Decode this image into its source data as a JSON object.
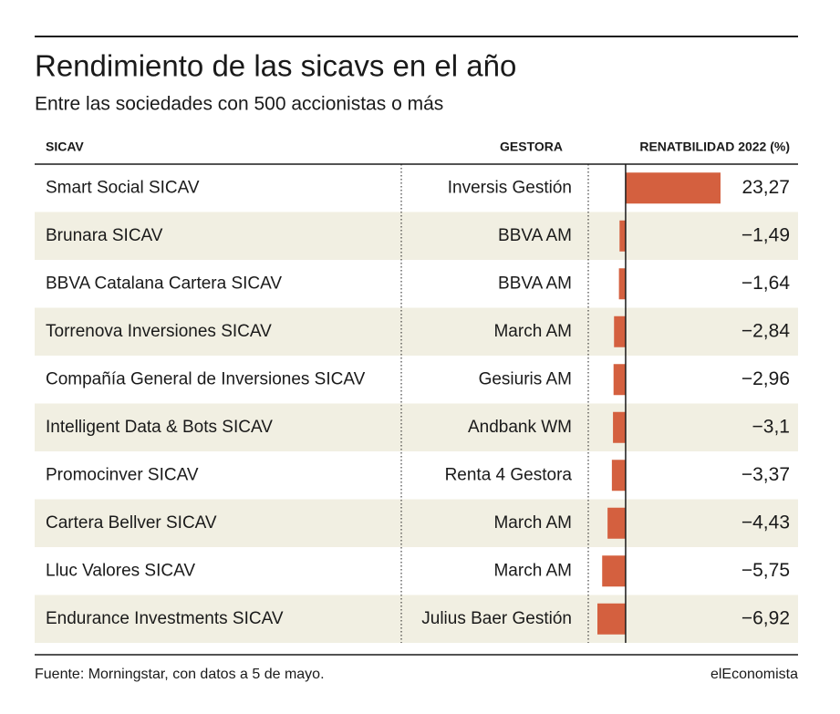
{
  "chart_data": {
    "type": "bar",
    "title": "Rendimiento de las sicavs en el año",
    "subtitle": "Entre las sociedades con 500 accionistas o más",
    "columns": [
      "SICAV",
      "GESTORA",
      "RENATBILIDAD 2022 (%)"
    ],
    "categories": [
      "Smart Social SICAV",
      "Brunara SICAV",
      "BBVA Catalana Cartera SICAV",
      "Torrenova Inversiones SICAV",
      "Compañía General de Inversiones SICAV",
      "Intelligent Data & Bots SICAV",
      "Promocinver SICAV",
      "Cartera Bellver SICAV",
      "Lluc Valores SICAV",
      "Endurance Investments SICAV"
    ],
    "gestoras": [
      "Inversis Gestión",
      "BBVA AM",
      "BBVA AM",
      "March AM",
      "Gesiuris AM",
      "Andbank WM",
      "Renta 4 Gestora",
      "March AM",
      "March AM",
      "Julius Baer Gestión"
    ],
    "values": [
      23.27,
      -1.49,
      -1.64,
      -2.84,
      -2.96,
      -3.1,
      -3.37,
      -4.43,
      -5.75,
      -6.92
    ],
    "value_labels": [
      "23,27",
      "−1,49",
      "−1,64",
      "−2,84",
      "−2,96",
      "−3,1",
      "−3,37",
      "−4,43",
      "−5,75",
      "−6,92"
    ],
    "color": "#d4603f",
    "source": "Fuente: Morningstar, con datos a 5 de mayo.",
    "brand": "elEconomista"
  }
}
